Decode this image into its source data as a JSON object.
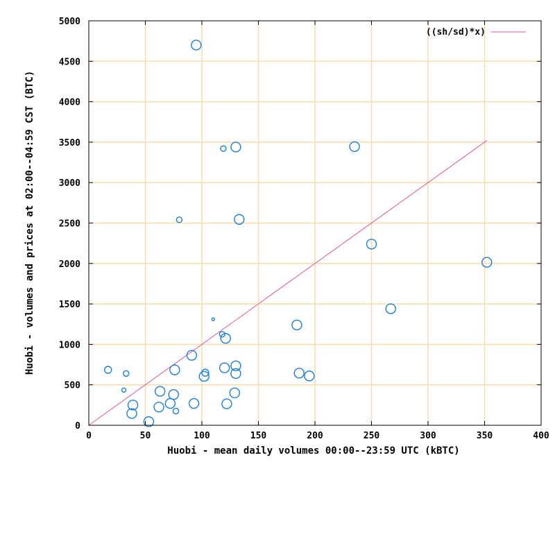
{
  "chart_data": {
    "type": "scatter",
    "xlabel": "Huobi - mean daily volumes 00:00--23:59 UTC (kBTC)",
    "ylabel": "Huobi - volumes and prices at 02:00--04:59 CST (BTC)",
    "xlim": [
      0,
      400
    ],
    "ylim": [
      0,
      5000
    ],
    "xticks": [
      "0",
      "50",
      "100",
      "150",
      "200",
      "250",
      "300",
      "350",
      "400"
    ],
    "yticks": [
      "0",
      "500",
      "1000",
      "1500",
      "2000",
      "2500",
      "3000",
      "3500",
      "4000",
      "4500",
      "5000"
    ],
    "grid": true,
    "grid_color": "#f8dcaa",
    "marker_color": "#1a7fd6",
    "line_color": "#e0549b",
    "legend": {
      "position": "top-right",
      "label": "((sh/sd)*x)"
    },
    "fit_line": {
      "slope": 10.0,
      "x_start": 0,
      "x_end": 352
    },
    "points": [
      {
        "x": 95,
        "y": 4700,
        "size": 7
      },
      {
        "x": 130,
        "y": 3440,
        "size": 7
      },
      {
        "x": 119,
        "y": 3420,
        "size": 4
      },
      {
        "x": 235,
        "y": 3445,
        "size": 7
      },
      {
        "x": 80,
        "y": 2540,
        "size": 4
      },
      {
        "x": 133,
        "y": 2545,
        "size": 7
      },
      {
        "x": 250,
        "y": 2240,
        "size": 7
      },
      {
        "x": 352,
        "y": 2015,
        "size": 7
      },
      {
        "x": 267,
        "y": 1440,
        "size": 7
      },
      {
        "x": 110,
        "y": 1310,
        "size": 2
      },
      {
        "x": 184,
        "y": 1240,
        "size": 7
      },
      {
        "x": 118,
        "y": 1125,
        "size": 4
      },
      {
        "x": 121,
        "y": 1075,
        "size": 7
      },
      {
        "x": 91,
        "y": 865,
        "size": 7
      },
      {
        "x": 17,
        "y": 685,
        "size": 5
      },
      {
        "x": 76,
        "y": 685,
        "size": 7
      },
      {
        "x": 33,
        "y": 640,
        "size": 4
      },
      {
        "x": 120,
        "y": 710,
        "size": 7
      },
      {
        "x": 130,
        "y": 735,
        "size": 7
      },
      {
        "x": 103,
        "y": 650,
        "size": 5
      },
      {
        "x": 102,
        "y": 605,
        "size": 7
      },
      {
        "x": 130,
        "y": 640,
        "size": 7
      },
      {
        "x": 186,
        "y": 645,
        "size": 7
      },
      {
        "x": 195,
        "y": 610,
        "size": 7
      },
      {
        "x": 31,
        "y": 435,
        "size": 3
      },
      {
        "x": 63,
        "y": 420,
        "size": 7
      },
      {
        "x": 75,
        "y": 380,
        "size": 7
      },
      {
        "x": 129,
        "y": 400,
        "size": 7
      },
      {
        "x": 39,
        "y": 250,
        "size": 7
      },
      {
        "x": 62,
        "y": 225,
        "size": 7
      },
      {
        "x": 72,
        "y": 270,
        "size": 7
      },
      {
        "x": 93,
        "y": 270,
        "size": 7
      },
      {
        "x": 122,
        "y": 265,
        "size": 7
      },
      {
        "x": 77,
        "y": 175,
        "size": 4
      },
      {
        "x": 38,
        "y": 145,
        "size": 7
      },
      {
        "x": 53,
        "y": 45,
        "size": 7
      }
    ]
  }
}
